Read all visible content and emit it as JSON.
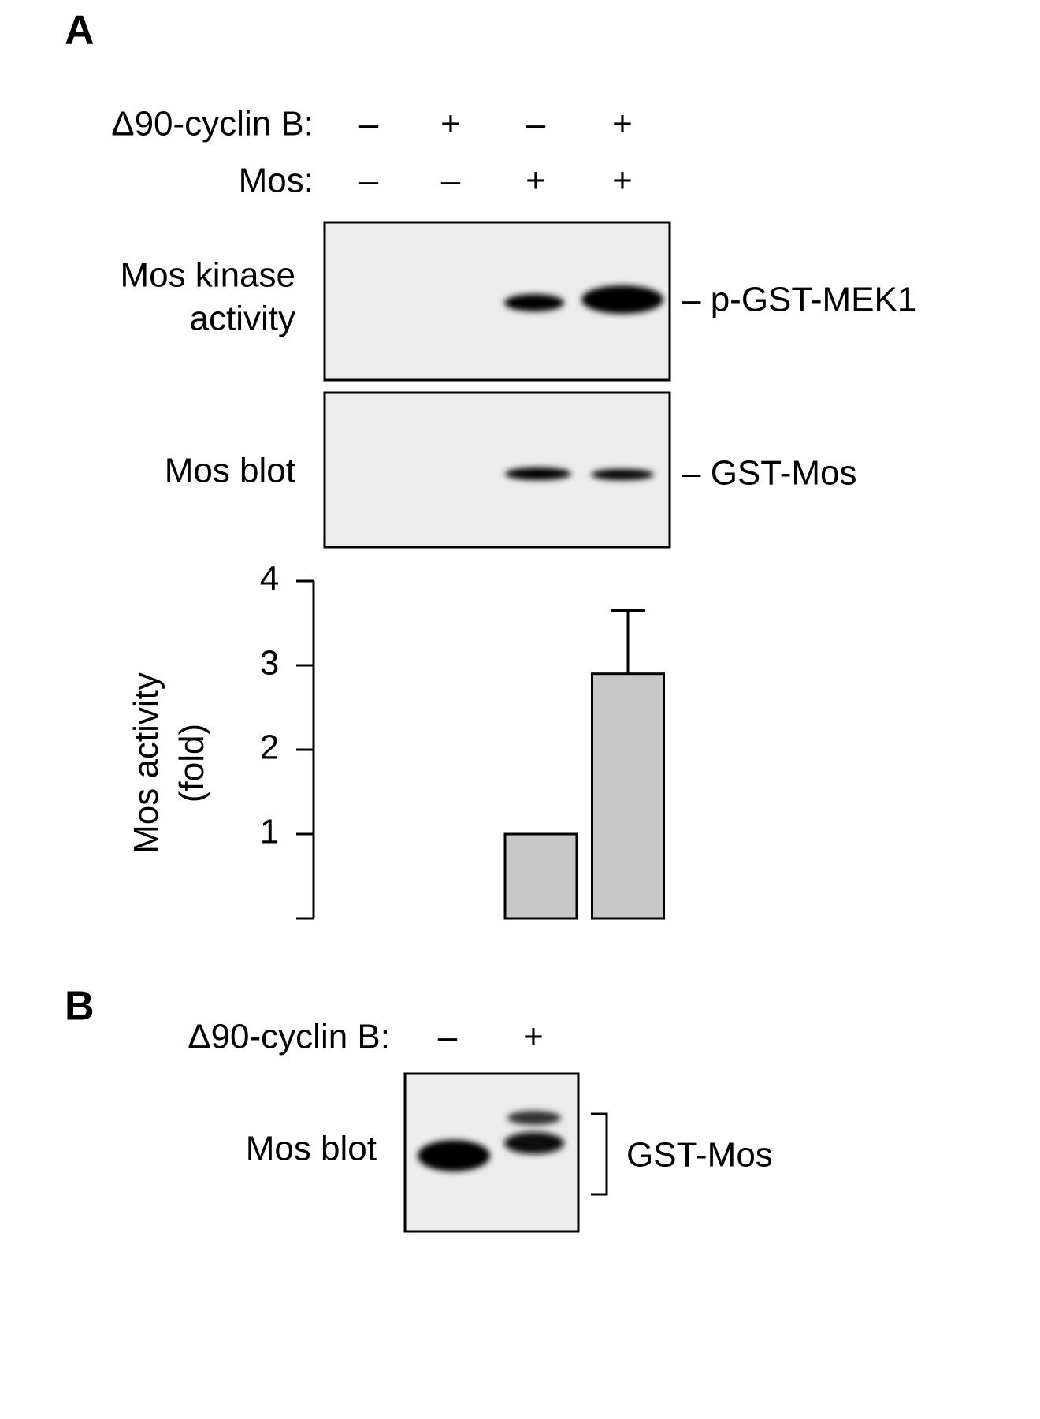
{
  "panel_a": {
    "letter": "A",
    "conditions": [
      {
        "label": "Δ90-cyclin B:",
        "signs": [
          "–",
          "+",
          "–",
          "+"
        ]
      },
      {
        "label": "Mos:",
        "signs": [
          "–",
          "–",
          "+",
          "+"
        ]
      }
    ],
    "kinase_blot": {
      "label": [
        "Mos kinase",
        "activity"
      ],
      "band": "– p-GST-MEK1"
    },
    "mos_blot": {
      "label": "Mos blot",
      "band": "– GST-Mos"
    }
  },
  "chart_data": {
    "type": "bar",
    "y_label": [
      "Mos activity",
      "(fold)"
    ],
    "categories": [
      null,
      null,
      null,
      null
    ],
    "values": [
      0,
      0,
      1.0,
      2.9
    ],
    "errors": [
      null,
      null,
      null,
      0.75
    ],
    "color": "#c8c8c8",
    "ylim": [
      0,
      4
    ],
    "yticks": [
      1,
      2,
      3,
      4
    ]
  },
  "panel_b": {
    "letter": "B",
    "condition": {
      "label": "Δ90-cyclin B:",
      "signs": [
        "–",
        "+"
      ]
    },
    "blot": {
      "label": "Mos blot",
      "band": "GST-Mos"
    }
  }
}
